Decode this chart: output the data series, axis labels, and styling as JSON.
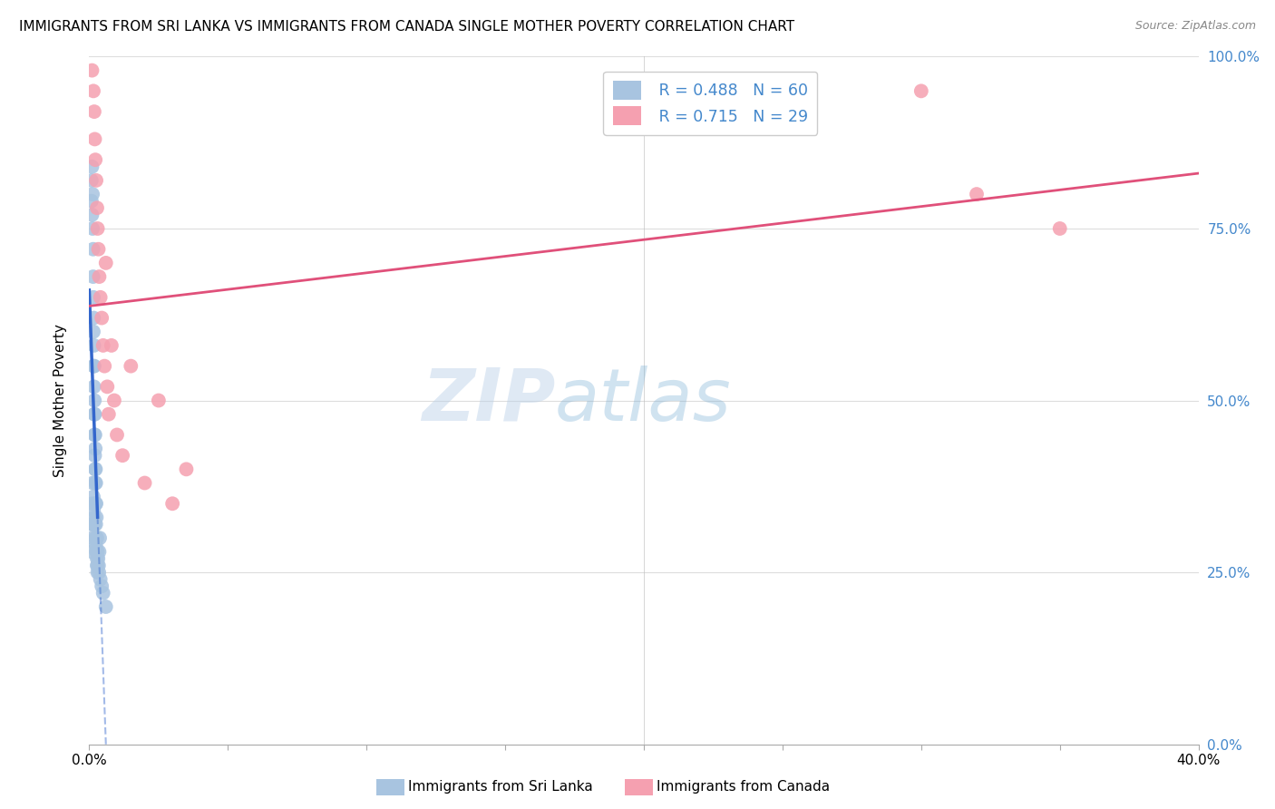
{
  "title": "IMMIGRANTS FROM SRI LANKA VS IMMIGRANTS FROM CANADA SINGLE MOTHER POVERTY CORRELATION CHART",
  "source": "Source: ZipAtlas.com",
  "ylabel": "Single Mother Poverty",
  "legend_label_1": "Immigrants from Sri Lanka",
  "legend_label_2": "Immigrants from Canada",
  "R1": 0.488,
  "N1": 60,
  "R2": 0.715,
  "N2": 29,
  "xlim": [
    0.0,
    0.4
  ],
  "ylim": [
    0.0,
    1.0
  ],
  "ytick_vals": [
    0.0,
    0.25,
    0.5,
    0.75,
    1.0
  ],
  "color_sri_lanka": "#a8c4e0",
  "color_canada": "#f5a0b0",
  "color_line_sri_lanka": "#3366cc",
  "color_line_canada": "#e0507a",
  "color_right_axis": "#4488cc",
  "watermark_zip": "ZIP",
  "watermark_atlas": "atlas",
  "sri_lanka_x": [
    0.0008,
    0.0008,
    0.001,
    0.001,
    0.0012,
    0.0012,
    0.0014,
    0.0014,
    0.0015,
    0.0015,
    0.0016,
    0.0016,
    0.0017,
    0.0017,
    0.0018,
    0.0018,
    0.0019,
    0.0019,
    0.002,
    0.002,
    0.0021,
    0.0021,
    0.0022,
    0.0022,
    0.0023,
    0.0023,
    0.0024,
    0.0024,
    0.0025,
    0.0025,
    0.0026,
    0.0026,
    0.0028,
    0.0028,
    0.003,
    0.003,
    0.0032,
    0.0034,
    0.0036,
    0.0038,
    0.0009,
    0.0009,
    0.0011,
    0.0011,
    0.0013,
    0.0013,
    0.0015,
    0.0016,
    0.0018,
    0.002,
    0.0022,
    0.0024,
    0.0026,
    0.0028,
    0.003,
    0.0035,
    0.004,
    0.0045,
    0.005,
    0.006
  ],
  "sri_lanka_y": [
    0.82,
    0.79,
    0.84,
    0.77,
    0.8,
    0.75,
    0.72,
    0.68,
    0.65,
    0.6,
    0.62,
    0.55,
    0.58,
    0.52,
    0.55,
    0.48,
    0.5,
    0.45,
    0.48,
    0.42,
    0.45,
    0.4,
    0.43,
    0.38,
    0.4,
    0.35,
    0.38,
    0.32,
    0.35,
    0.3,
    0.33,
    0.28,
    0.3,
    0.26,
    0.28,
    0.25,
    0.27,
    0.26,
    0.28,
    0.3,
    0.32,
    0.28,
    0.35,
    0.3,
    0.38,
    0.32,
    0.36,
    0.34,
    0.33,
    0.32,
    0.3,
    0.29,
    0.28,
    0.27,
    0.26,
    0.25,
    0.24,
    0.23,
    0.22,
    0.2
  ],
  "canada_x": [
    0.001,
    0.0015,
    0.0018,
    0.002,
    0.0022,
    0.0025,
    0.0028,
    0.003,
    0.0033,
    0.0036,
    0.004,
    0.0045,
    0.005,
    0.0055,
    0.006,
    0.0065,
    0.007,
    0.008,
    0.009,
    0.01,
    0.012,
    0.015,
    0.02,
    0.025,
    0.03,
    0.035,
    0.3,
    0.32,
    0.35
  ],
  "canada_y": [
    0.98,
    0.95,
    0.92,
    0.88,
    0.85,
    0.82,
    0.78,
    0.75,
    0.72,
    0.68,
    0.65,
    0.62,
    0.58,
    0.55,
    0.7,
    0.52,
    0.48,
    0.58,
    0.5,
    0.45,
    0.42,
    0.55,
    0.38,
    0.5,
    0.35,
    0.4,
    0.95,
    0.8,
    0.75
  ]
}
